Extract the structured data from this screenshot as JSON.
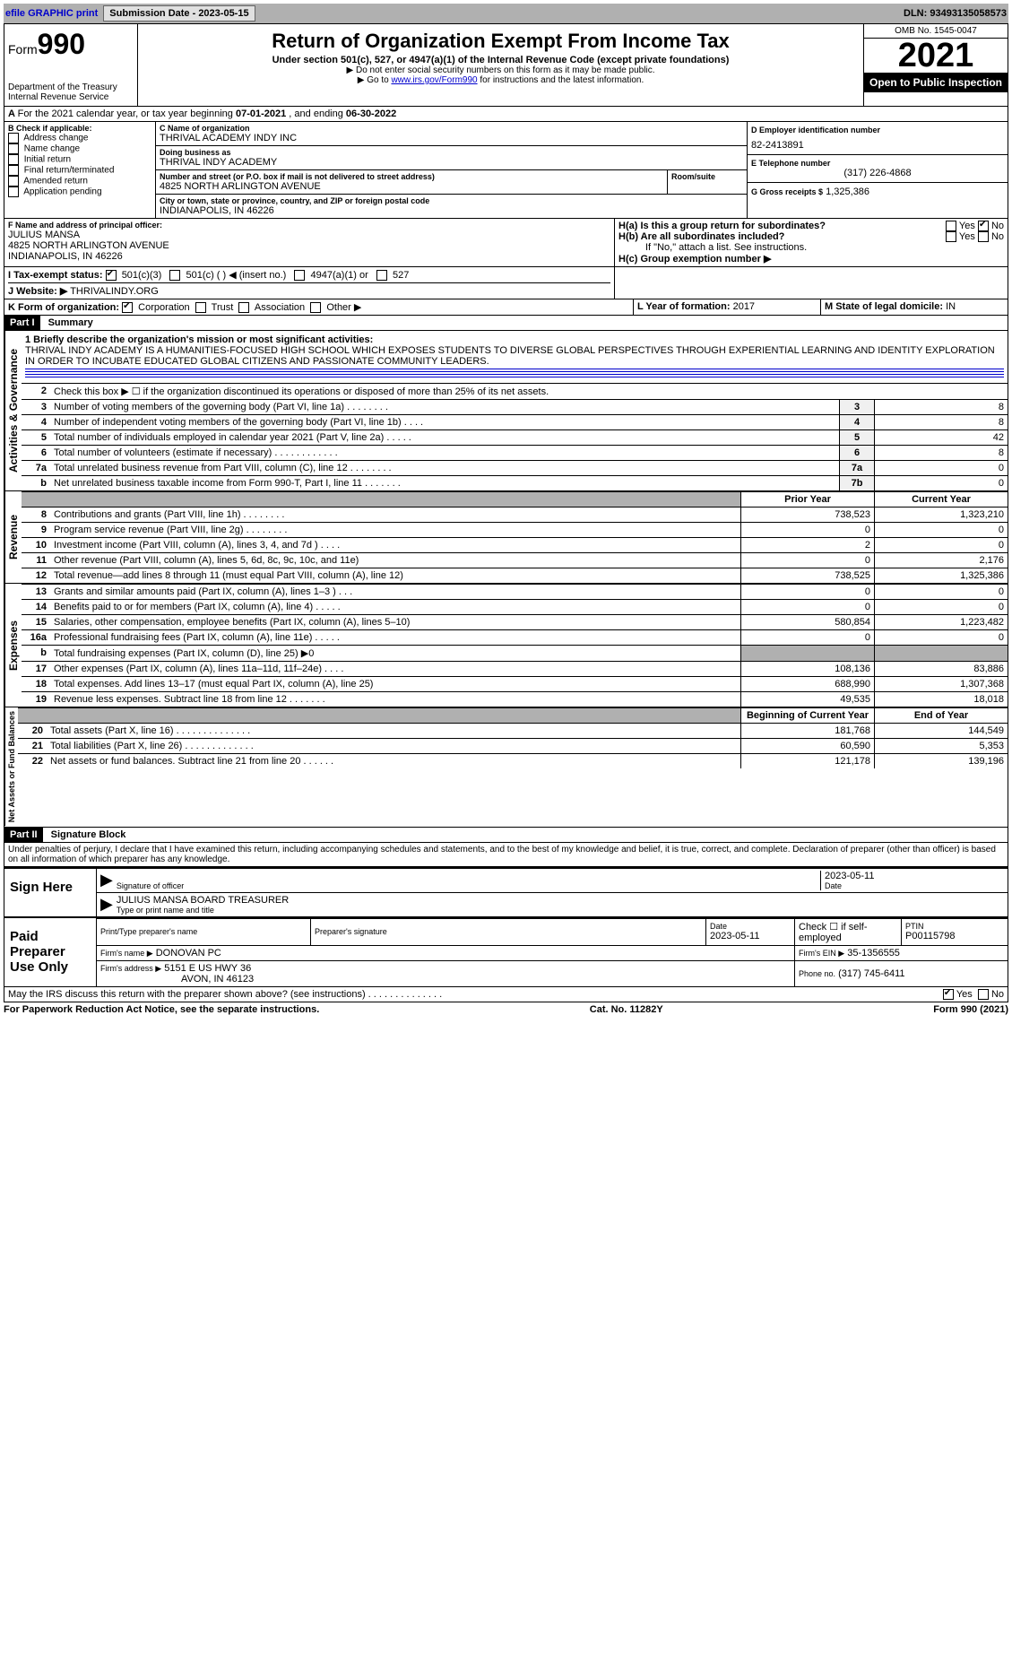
{
  "topbar": {
    "efile": "efile GRAPHIC print",
    "submission_label": "Submission Date - 2023-05-15",
    "dln": "DLN: 93493135058573"
  },
  "header": {
    "form_prefix": "Form",
    "form_number": "990",
    "dept": "Department of the Treasury\nInternal Revenue Service",
    "title": "Return of Organization Exempt From Income Tax",
    "subtitle": "Under section 501(c), 527, or 4947(a)(1) of the Internal Revenue Code (except private foundations)",
    "note1": "▶ Do not enter social security numbers on this form as it may be made public.",
    "note2_pre": "▶ Go to ",
    "note2_link": "www.irs.gov/Form990",
    "note2_post": " for instructions and the latest information.",
    "omb": "OMB No. 1545-0047",
    "year": "2021",
    "open": "Open to Public Inspection"
  },
  "periodA": {
    "text_pre": "For the 2021 calendar year, or tax year beginning ",
    "begin": "07-01-2021",
    "text_mid": " , and ending ",
    "end": "06-30-2022"
  },
  "boxB": {
    "label": "B Check if applicable:",
    "items": [
      "Address change",
      "Name change",
      "Initial return",
      "Final return/terminated",
      "Amended return",
      "Application pending"
    ]
  },
  "boxC": {
    "name_label": "C Name of organization",
    "name": "THRIVAL ACADEMY INDY INC",
    "dba_label": "Doing business as",
    "dba": "THRIVAL INDY ACADEMY",
    "street_label": "Number and street (or P.O. box if mail is not delivered to street address)",
    "room_label": "Room/suite",
    "street": "4825 NORTH ARLINGTON AVENUE",
    "city_label": "City or town, state or province, country, and ZIP or foreign postal code",
    "city": "INDIANAPOLIS, IN  46226"
  },
  "boxD": {
    "label": "D Employer identification number",
    "value": "82-2413891"
  },
  "boxE": {
    "label": "E Telephone number",
    "value": "(317) 226-4868"
  },
  "boxG": {
    "label": "G Gross receipts $",
    "value": "1,325,386"
  },
  "boxF": {
    "label": "F  Name and address of principal officer:",
    "name": "JULIUS MANSA",
    "addr1": "4825 NORTH ARLINGTON AVENUE",
    "addr2": "INDIANAPOLIS, IN  46226"
  },
  "boxH": {
    "a_label": "H(a)  Is this a group return for subordinates?",
    "a_yes": "Yes",
    "a_no": "No",
    "b_label": "H(b)  Are all subordinates included?",
    "b_note": "If \"No,\" attach a list. See instructions.",
    "c_label": "H(c)  Group exemption number ▶"
  },
  "boxI": {
    "label": "I  Tax-exempt status:",
    "opt1": "501(c)(3)",
    "opt2": "501(c) (   ) ◀ (insert no.)",
    "opt3": "4947(a)(1) or",
    "opt4": "527"
  },
  "boxJ": {
    "label": "J  Website: ▶",
    "value": "THRIVALINDY.ORG"
  },
  "boxK": {
    "label": "K Form of organization:",
    "opts": [
      "Corporation",
      "Trust",
      "Association",
      "Other ▶"
    ]
  },
  "boxL": {
    "label": "L Year of formation:",
    "value": "2017"
  },
  "boxM": {
    "label": "M State of legal domicile:",
    "value": "IN"
  },
  "part1": {
    "tag": "Part I",
    "title": "Summary",
    "vtab1": "Activities & Governance",
    "vtab2": "Revenue",
    "vtab3": "Expenses",
    "vtab4": "Net Assets or Fund Balances",
    "line1_label": "1  Briefly describe the organization's mission or most significant activities:",
    "line1_text": "THRIVAL INDY ACADEMY IS A HUMANITIES-FOCUSED HIGH SCHOOL WHICH EXPOSES STUDENTS TO DIVERSE GLOBAL PERSPECTIVES THROUGH EXPERIENTIAL LEARNING AND IDENTITY EXPLORATION IN ORDER TO INCUBATE EDUCATED GLOBAL CITIZENS AND PASSIONATE COMMUNITY LEADERS.",
    "line2": "Check this box ▶ ☐ if the organization discontinued its operations or disposed of more than 25% of its net assets.",
    "rows_a": [
      {
        "n": "3",
        "label": "Number of voting members of the governing body (Part VI, line 1a)   .    .    .    .    .    .    .    .",
        "box": "3",
        "val": "8"
      },
      {
        "n": "4",
        "label": "Number of independent voting members of the governing body (Part VI, line 1b)   .    .    .    .",
        "box": "4",
        "val": "8"
      },
      {
        "n": "5",
        "label": "Total number of individuals employed in calendar year 2021 (Part V, line 2a)   .    .    .    .    .",
        "box": "5",
        "val": "42"
      },
      {
        "n": "6",
        "label": "Total number of volunteers (estimate if necessary)   .    .    .    .    .    .    .    .    .    .    .    .",
        "box": "6",
        "val": "8"
      },
      {
        "n": "7a",
        "label": "Total unrelated business revenue from Part VIII, column (C), line 12   .    .    .    .    .    .    .    .",
        "box": "7a",
        "val": "0"
      },
      {
        "n": "b",
        "label": "Net unrelated business taxable income from Form 990-T, Part I, line 11   .    .    .    .    .    .    .",
        "box": "7b",
        "val": "0"
      }
    ],
    "col_prior": "Prior Year",
    "col_current": "Current Year",
    "rows_rev": [
      {
        "n": "8",
        "label": "Contributions and grants (Part VIII, line 1h)   .    .    .    .    .    .    .    .",
        "p": "738,523",
        "c": "1,323,210"
      },
      {
        "n": "9",
        "label": "Program service revenue (Part VIII, line 2g)   .    .    .    .    .    .    .    .",
        "p": "0",
        "c": "0"
      },
      {
        "n": "10",
        "label": "Investment income (Part VIII, column (A), lines 3, 4, and 7d )   .    .    .    .",
        "p": "2",
        "c": "0"
      },
      {
        "n": "11",
        "label": "Other revenue (Part VIII, column (A), lines 5, 6d, 8c, 9c, 10c, and 11e)",
        "p": "0",
        "c": "2,176"
      },
      {
        "n": "12",
        "label": "Total revenue—add lines 8 through 11 (must equal Part VIII, column (A), line 12)",
        "p": "738,525",
        "c": "1,325,386"
      }
    ],
    "rows_exp": [
      {
        "n": "13",
        "label": "Grants and similar amounts paid (Part IX, column (A), lines 1–3 )   .    .    .",
        "p": "0",
        "c": "0"
      },
      {
        "n": "14",
        "label": "Benefits paid to or for members (Part IX, column (A), line 4)   .    .    .    .    .",
        "p": "0",
        "c": "0"
      },
      {
        "n": "15",
        "label": "Salaries, other compensation, employee benefits (Part IX, column (A), lines 5–10)",
        "p": "580,854",
        "c": "1,223,482"
      },
      {
        "n": "16a",
        "label": "Professional fundraising fees (Part IX, column (A), line 11e)   .    .    .    .    .",
        "p": "0",
        "c": "0"
      },
      {
        "n": "b",
        "label": "Total fundraising expenses (Part IX, column (D), line 25) ▶0",
        "p": "",
        "c": ""
      },
      {
        "n": "17",
        "label": "Other expenses (Part IX, column (A), lines 11a–11d, 11f–24e)   .    .    .    .",
        "p": "108,136",
        "c": "83,886"
      },
      {
        "n": "18",
        "label": "Total expenses. Add lines 13–17 (must equal Part IX, column (A), line 25)",
        "p": "688,990",
        "c": "1,307,368"
      },
      {
        "n": "19",
        "label": "Revenue less expenses. Subtract line 18 from line 12   .    .    .    .    .    .    .",
        "p": "49,535",
        "c": "18,018"
      }
    ],
    "col_begin": "Beginning of Current Year",
    "col_end": "End of Year",
    "rows_net": [
      {
        "n": "20",
        "label": "Total assets (Part X, line 16)   .    .    .    .    .    .    .    .    .    .    .    .    .    .",
        "p": "181,768",
        "c": "144,549"
      },
      {
        "n": "21",
        "label": "Total liabilities (Part X, line 26)   .    .    .    .    .    .    .    .    .    .    .    .    .",
        "p": "60,590",
        "c": "5,353"
      },
      {
        "n": "22",
        "label": "Net assets or fund balances. Subtract line 21 from line 20   .    .    .    .    .    .",
        "p": "121,178",
        "c": "139,196"
      }
    ]
  },
  "part2": {
    "tag": "Part II",
    "title": "Signature Block",
    "penalty": "Under penalties of perjury, I declare that I have examined this return, including accompanying schedules and statements, and to the best of my knowledge and belief, it is true, correct, and complete. Declaration of preparer (other than officer) is based on all information of which preparer has any knowledge.",
    "sign_here": "Sign Here",
    "sig_officer_label": "Signature of officer",
    "sig_date": "2023-05-11",
    "date_label": "Date",
    "officer_name": "JULIUS MANSA  BOARD TREASURER",
    "officer_name_label": "Type or print name and title",
    "paid": "Paid Preparer Use Only",
    "prep_name_label": "Print/Type preparer's name",
    "prep_sig_label": "Preparer's signature",
    "prep_date_label": "Date",
    "prep_date": "2023-05-11",
    "check_self": "Check ☐ if self-employed",
    "ptin_label": "PTIN",
    "ptin": "P00115798",
    "firm_name_label": "Firm's name    ▶",
    "firm_name": "DONOVAN PC",
    "firm_ein_label": "Firm's EIN ▶",
    "firm_ein": "35-1356555",
    "firm_addr_label": "Firm's address ▶",
    "firm_addr1": "5151 E US HWY 36",
    "firm_addr2": "AVON, IN  46123",
    "phone_label": "Phone no.",
    "phone": "(317) 745-6411",
    "discuss": "May the IRS discuss this return with the preparer shown above? (see instructions)   .    .    .    .    .    .    .    .    .    .    .    .    .    .",
    "yes": "Yes",
    "no": "No"
  },
  "footer": {
    "left": "For Paperwork Reduction Act Notice, see the separate instructions.",
    "mid": "Cat. No. 11282Y",
    "right_pre": "Form ",
    "right_bold": "990",
    "right_post": " (2021)"
  }
}
